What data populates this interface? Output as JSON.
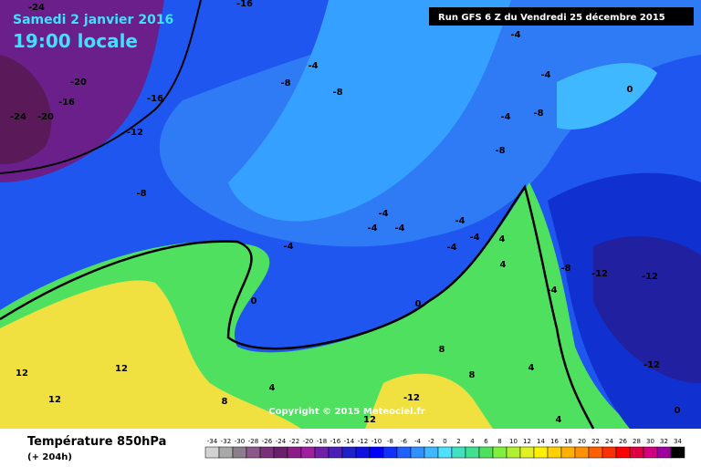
{
  "header": {
    "date": "Samedi 2 janvier 2016",
    "time": "19:00 locale",
    "run": "Run GFS 6 Z du Vendredi 25 décembre 2015"
  },
  "copyright": "Copyright © 2015 Meteociel.fr",
  "footer": {
    "title": "Température 850hPa",
    "lead": "(+ 204h)"
  },
  "map_labels": [
    "-24",
    "-16",
    "-20",
    "-24",
    "-20",
    "-16",
    "-16",
    "-12",
    "-4",
    "-8",
    "-8",
    "-8",
    "-4",
    "-4",
    "-4",
    "-8",
    "-8",
    "0",
    "-4",
    "-4",
    "-4",
    "-4",
    "-4",
    "-4",
    "-4",
    "4",
    "4",
    "-8",
    "-12",
    "-12",
    "-4",
    "0",
    "0",
    "8",
    "8",
    "4",
    "-12",
    "12",
    "12",
    "12",
    "8",
    "4",
    "-12",
    "12",
    "4",
    "0"
  ],
  "legend": {
    "values": [
      -34,
      -32,
      -30,
      -28,
      -26,
      -24,
      -22,
      -20,
      -18,
      -16,
      -14,
      -12,
      -10,
      -8,
      -6,
      -4,
      -2,
      0,
      2,
      4,
      6,
      8,
      10,
      12,
      14,
      16,
      18,
      20,
      22,
      24,
      26,
      28,
      30,
      32,
      34
    ],
    "colors": [
      "#d2d2d2",
      "#a9a9a9",
      "#8c7e8c",
      "#8b5a8b",
      "#7a2f7a",
      "#6a1f6a",
      "#8b1d8b",
      "#a01fa0",
      "#7020a8",
      "#4a1fb8",
      "#2020c8",
      "#1010e0",
      "#0000ff",
      "#1030ff",
      "#2060ff",
      "#3090ff",
      "#40b8ff",
      "#50e0ff",
      "#40e0c0",
      "#40e090",
      "#50e060",
      "#80f040",
      "#b0f030",
      "#e0f020",
      "#fff000",
      "#ffd000",
      "#ffb000",
      "#ff9000",
      "#ff6000",
      "#ff3000",
      "#ff0000",
      "#e00040",
      "#d00080",
      "#a000a0",
      "#000000"
    ]
  }
}
